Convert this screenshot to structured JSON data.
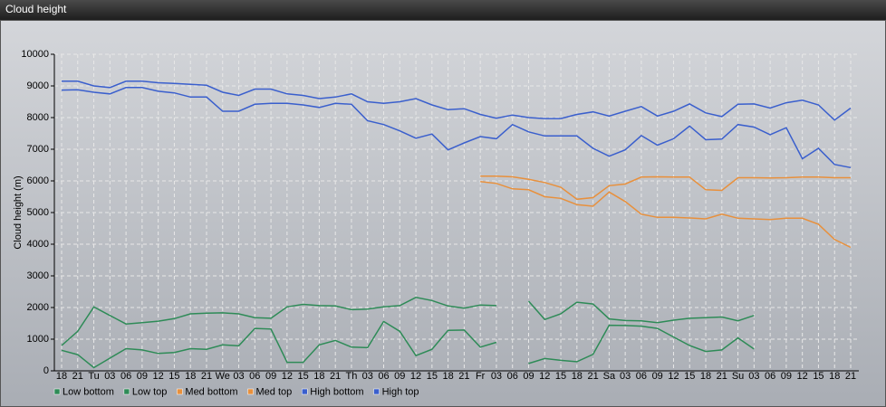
{
  "chart_data": {
    "type": "line",
    "title": "Cloud height",
    "ylabel": "Cloud height (m)",
    "categories": [
      "18",
      "21",
      "Tu",
      "03",
      "06",
      "09",
      "12",
      "15",
      "18",
      "21",
      "We",
      "03",
      "06",
      "09",
      "12",
      "15",
      "18",
      "21",
      "Th",
      "03",
      "06",
      "09",
      "12",
      "15",
      "18",
      "21",
      "Fr",
      "03",
      "06",
      "09",
      "12",
      "15",
      "18",
      "21",
      "Sa",
      "03",
      "06",
      "09",
      "12",
      "15",
      "18",
      "21",
      "Su",
      "03",
      "06",
      "09",
      "12",
      "15",
      "18",
      "21"
    ],
    "ylim": [
      0,
      10000
    ],
    "yticks": [
      0,
      1000,
      2000,
      3000,
      4000,
      5000,
      6000,
      7000,
      8000,
      9000,
      10000
    ],
    "grid": true,
    "series": [
      {
        "name": "Low bottom",
        "color": "#2e8b57",
        "values": [
          650,
          510,
          100,
          400,
          700,
          660,
          550,
          580,
          700,
          680,
          820,
          790,
          1340,
          1320,
          270,
          270,
          820,
          960,
          750,
          730,
          1560,
          1250,
          480,
          680,
          1280,
          1290,
          750,
          900,
          null,
          230,
          390,
          330,
          290,
          520,
          1440,
          1430,
          1410,
          1340,
          1070,
          800,
          610,
          660,
          1040,
          690,
          null,
          null,
          null,
          null,
          null,
          null
        ]
      },
      {
        "name": "Low top",
        "color": "#2e8b57",
        "values": [
          800,
          1250,
          2020,
          1750,
          1480,
          1520,
          1570,
          1650,
          1800,
          1820,
          1830,
          1800,
          1680,
          1660,
          2020,
          2100,
          2060,
          2050,
          1930,
          1950,
          2020,
          2060,
          2320,
          2220,
          2050,
          1980,
          2080,
          2060,
          null,
          2200,
          1620,
          1800,
          2170,
          2110,
          1640,
          1590,
          1580,
          1520,
          1600,
          1660,
          1680,
          1700,
          1580,
          1750,
          null,
          null,
          null,
          null,
          null,
          null
        ]
      },
      {
        "name": "Med bottom",
        "color": "#e8903c",
        "values": [
          null,
          null,
          null,
          null,
          null,
          null,
          null,
          null,
          null,
          null,
          null,
          null,
          null,
          null,
          null,
          null,
          null,
          null,
          null,
          null,
          null,
          null,
          null,
          null,
          null,
          null,
          5980,
          5920,
          5750,
          5720,
          5500,
          5450,
          5250,
          5200,
          5650,
          5350,
          4950,
          4850,
          4850,
          4830,
          4800,
          4950,
          4820,
          4800,
          4780,
          4820,
          4820,
          4630,
          4150,
          3900
        ]
      },
      {
        "name": "Med top",
        "color": "#e8903c",
        "values": [
          null,
          null,
          null,
          null,
          null,
          null,
          null,
          null,
          null,
          null,
          null,
          null,
          null,
          null,
          null,
          null,
          null,
          null,
          null,
          null,
          null,
          null,
          null,
          null,
          null,
          null,
          6150,
          6150,
          6130,
          6050,
          5950,
          5800,
          5420,
          5470,
          5850,
          5900,
          6120,
          6130,
          6120,
          6120,
          5720,
          5700,
          6100,
          6100,
          6090,
          6100,
          6120,
          6120,
          6100,
          6100
        ]
      },
      {
        "name": "High bottom",
        "color": "#3a5fcd",
        "values": [
          8870,
          8880,
          8800,
          8750,
          8950,
          8950,
          8830,
          8780,
          8650,
          8650,
          8200,
          8200,
          8420,
          8450,
          8450,
          8400,
          8320,
          8450,
          8420,
          7900,
          7780,
          7580,
          7350,
          7480,
          6980,
          7200,
          7400,
          7330,
          7780,
          7550,
          7420,
          7420,
          7420,
          7030,
          6780,
          6980,
          7430,
          7130,
          7330,
          7730,
          7300,
          7320,
          7780,
          7700,
          7460,
          7680,
          6700,
          7030,
          6520,
          6420
        ]
      },
      {
        "name": "High top",
        "color": "#3a5fcd",
        "values": [
          9150,
          9150,
          9000,
          8950,
          9150,
          9150,
          9100,
          9080,
          9050,
          9020,
          8800,
          8700,
          8900,
          8900,
          8750,
          8700,
          8600,
          8650,
          8750,
          8500,
          8450,
          8500,
          8600,
          8400,
          8250,
          8280,
          8100,
          7980,
          8080,
          8000,
          7970,
          7970,
          8100,
          8180,
          8050,
          8200,
          8350,
          8050,
          8200,
          8430,
          8150,
          8030,
          8420,
          8430,
          8300,
          8470,
          8550,
          8400,
          7920,
          8300
        ]
      }
    ]
  }
}
